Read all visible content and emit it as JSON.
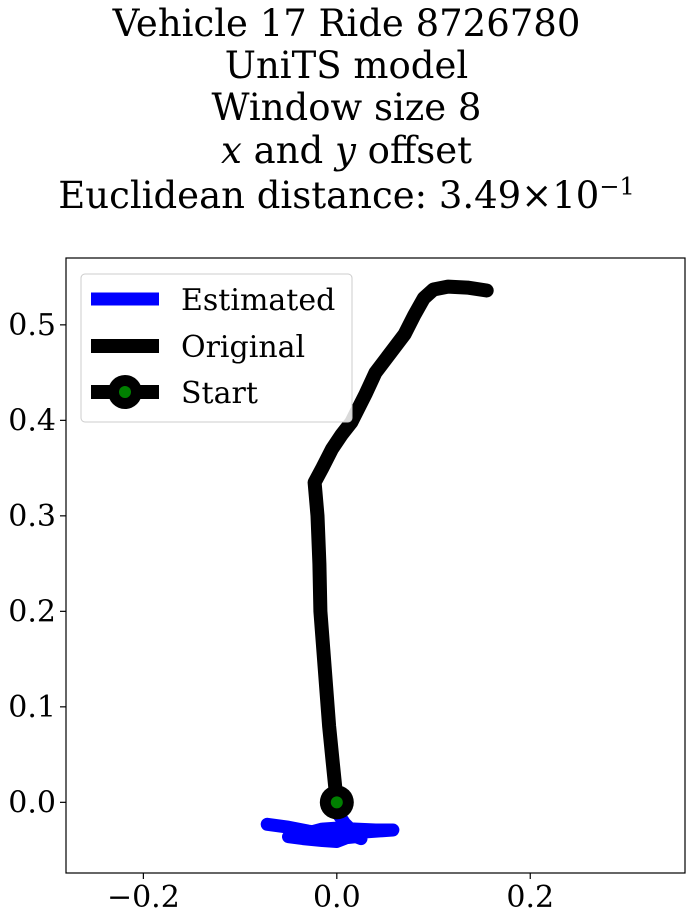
{
  "title": {
    "line1": "Vehicle 17 Ride 8726780",
    "line2": "UniTS model",
    "line3": "Window size 8",
    "line4_var_x": "x",
    "line4_and": " and ",
    "line4_var_y": "y",
    "line4_rest": " offset",
    "line5_prefix": "Euclidean distance: 3.49",
    "line5_times": "×",
    "line5_base": "10",
    "line5_exp": "−1"
  },
  "chart_data": {
    "type": "line",
    "xlim": [
      -0.28,
      0.36
    ],
    "ylim": [
      -0.074,
      0.57
    ],
    "xticks": [
      -0.2,
      0.0,
      0.2
    ],
    "xtick_labels": [
      "−0.2",
      "0.0",
      "0.2"
    ],
    "yticks": [
      0.0,
      0.1,
      0.2,
      0.3,
      0.4,
      0.5
    ],
    "ytick_labels": [
      "0.0",
      "0.1",
      "0.2",
      "0.3",
      "0.4",
      "0.5"
    ],
    "grid": false,
    "legend_position": "top-left",
    "series": [
      {
        "name": "Estimated",
        "color": "#0000ff",
        "points": [
          [
            -0.072,
            -0.023
          ],
          [
            -0.05,
            -0.026
          ],
          [
            -0.03,
            -0.03
          ],
          [
            -0.01,
            -0.033
          ],
          [
            0.0,
            -0.036
          ],
          [
            0.01,
            -0.035
          ],
          [
            0.03,
            -0.031
          ],
          [
            0.058,
            -0.029
          ],
          [
            0.04,
            -0.029
          ],
          [
            0.02,
            -0.028
          ],
          [
            0.0,
            -0.027
          ],
          [
            -0.015,
            -0.028
          ],
          [
            -0.03,
            -0.032
          ],
          [
            -0.05,
            -0.036
          ],
          [
            -0.035,
            -0.038
          ],
          [
            -0.015,
            -0.04
          ],
          [
            0.0,
            -0.041
          ],
          [
            0.01,
            -0.037
          ],
          [
            0.02,
            -0.036
          ],
          [
            0.025,
            -0.038
          ],
          [
            0.015,
            -0.029
          ],
          [
            0.008,
            -0.022
          ],
          [
            0.0,
            -0.01
          ],
          [
            -0.005,
            0.0
          ]
        ]
      },
      {
        "name": "Original",
        "color": "#000000",
        "points": [
          [
            0.0,
            0.0
          ],
          [
            -0.004,
            0.04
          ],
          [
            -0.008,
            0.08
          ],
          [
            -0.011,
            0.12
          ],
          [
            -0.014,
            0.16
          ],
          [
            -0.017,
            0.2
          ],
          [
            -0.018,
            0.25
          ],
          [
            -0.02,
            0.3
          ],
          [
            -0.023,
            0.335
          ],
          [
            -0.015,
            0.35
          ],
          [
            -0.005,
            0.37
          ],
          [
            0.005,
            0.385
          ],
          [
            0.015,
            0.398
          ],
          [
            0.03,
            0.428
          ],
          [
            0.04,
            0.45
          ],
          [
            0.055,
            0.47
          ],
          [
            0.07,
            0.49
          ],
          [
            0.08,
            0.51
          ],
          [
            0.09,
            0.528
          ],
          [
            0.1,
            0.537
          ],
          [
            0.115,
            0.54
          ],
          [
            0.135,
            0.539
          ],
          [
            0.155,
            0.536
          ]
        ]
      },
      {
        "name": "Start",
        "color": "#000000",
        "marker_color": "#008000",
        "points": [
          [
            0.0,
            0.0
          ]
        ]
      }
    ]
  }
}
